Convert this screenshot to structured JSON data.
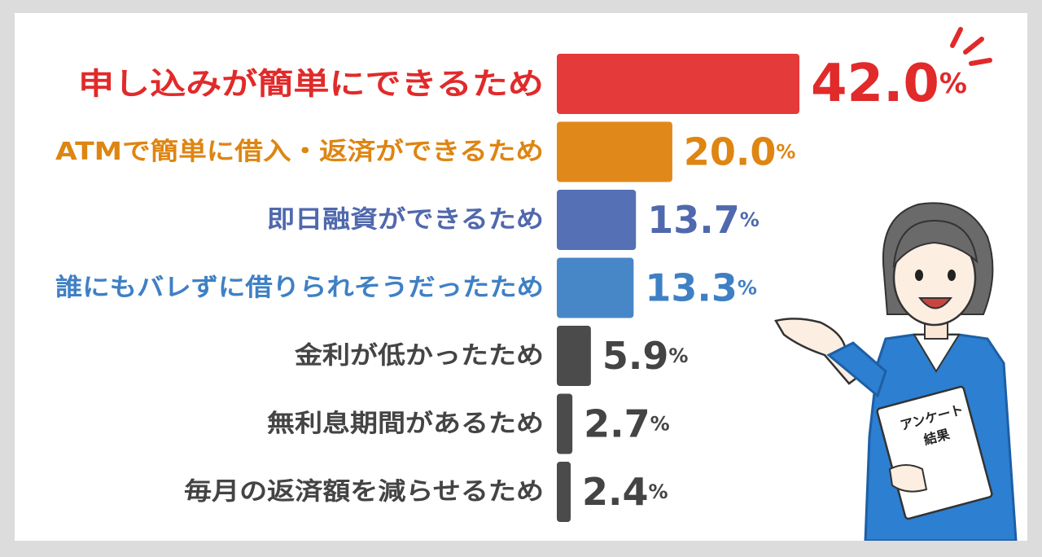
{
  "chart_data": {
    "type": "bar",
    "orientation": "horizontal",
    "title": "",
    "xlabel": "",
    "ylabel": "",
    "xlim": [
      0,
      42
    ],
    "value_suffix": "%",
    "categories": [
      "申し込みが簡単にできるため",
      "ATMで簡単に借入・返済ができるため",
      "即日融資ができるため",
      "誰にもバレずに借りられそうだったため",
      "金利が低かったため",
      "無利息期間があるため",
      "毎月の返済額を減らせるため"
    ],
    "values": [
      42.0,
      20.0,
      13.7,
      13.3,
      5.9,
      2.7,
      2.4
    ],
    "value_labels": [
      "42.0",
      "20.0",
      "13.7",
      "13.3",
      "5.9",
      "2.7",
      "2.4"
    ],
    "colors": [
      "#e53a3a",
      "#e0891a",
      "#5570b5",
      "#4787c8",
      "#4b4b4b",
      "#4b4b4b",
      "#4b4b4b"
    ],
    "label_colors": [
      "#e12a2a",
      "#de8512",
      "#5068ad",
      "#3f80c4",
      "#444444",
      "#444444",
      "#444444"
    ],
    "grid": false,
    "legend": "none"
  },
  "illustration": {
    "icon": "businesswoman-presenting-icon",
    "clipboard_text": [
      "アンケート",
      "結果"
    ],
    "suit_color": "#2c7fd1"
  }
}
